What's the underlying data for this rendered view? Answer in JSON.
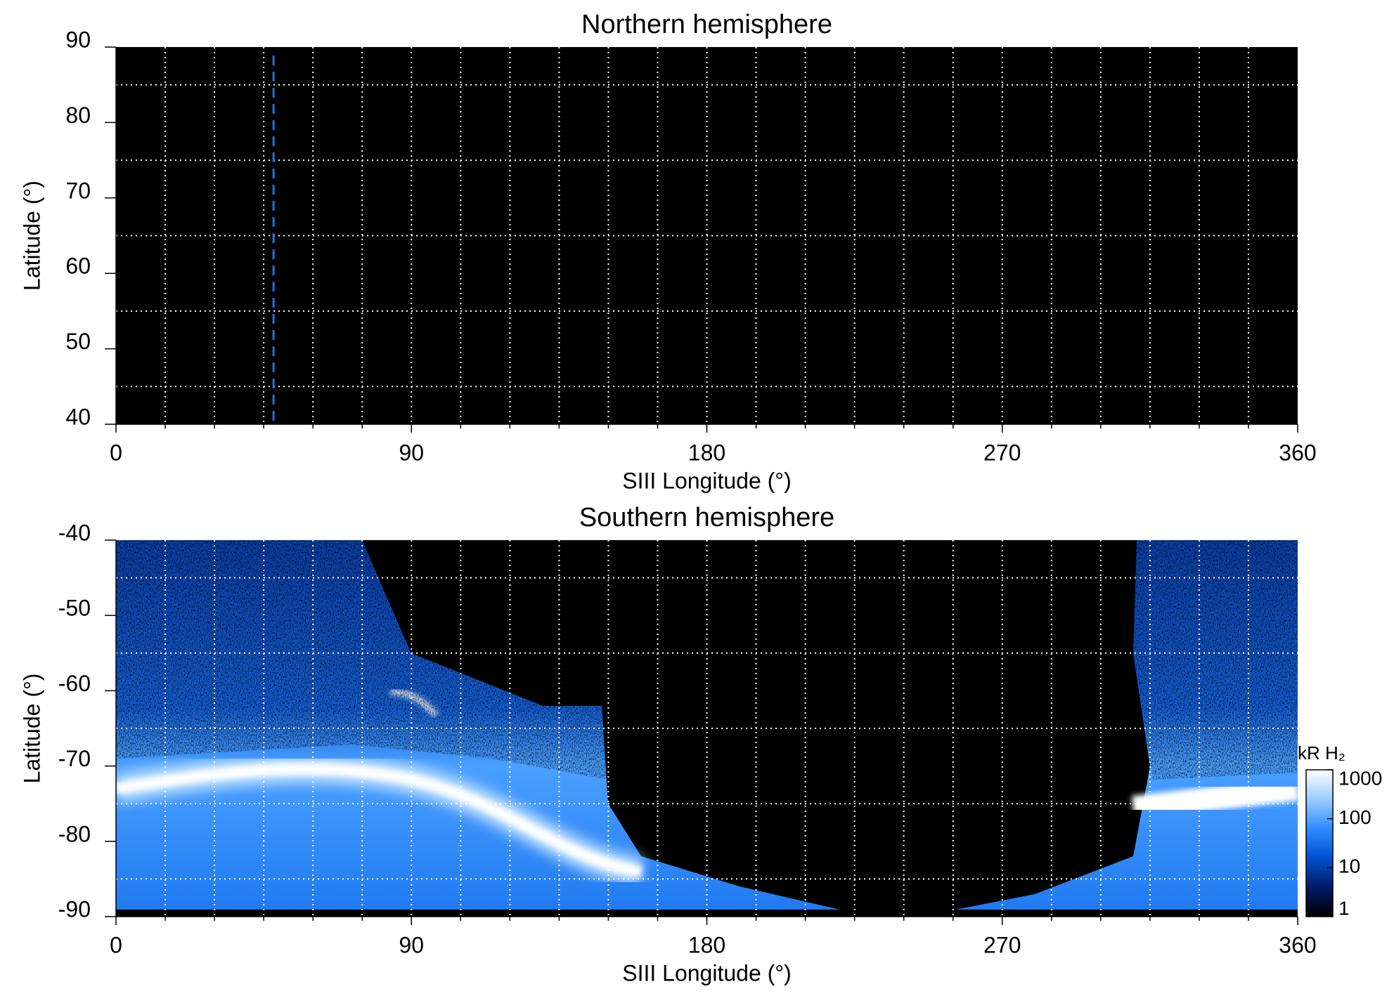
{
  "chart_data": [
    {
      "type": "heatmap",
      "title": "Northern hemisphere",
      "x_label": "SIII Longitude (°)",
      "y_label": "Latitude (°)",
      "xlim": [
        0,
        360
      ],
      "xticks": [
        0,
        90,
        180,
        270,
        360
      ],
      "ylim": [
        40,
        90
      ],
      "yticks": [
        40,
        50,
        60,
        70,
        80,
        90
      ],
      "xgrid": [
        15,
        30,
        45,
        60,
        75,
        90,
        105,
        120,
        135,
        150,
        165,
        180,
        195,
        210,
        225,
        240,
        255,
        270,
        285,
        300,
        315,
        330,
        345
      ],
      "ygrid": [
        45,
        55,
        65,
        75,
        85
      ],
      "vlines": [
        48
      ],
      "vline_color": "#2a6fd6",
      "grid_color": "#ffffff",
      "background": "#000000"
    },
    {
      "type": "heatmap",
      "title": "Southern hemisphere",
      "x_label": "SIII Longitude (°)",
      "y_label": "Latitude (°)",
      "xlim": [
        0,
        360
      ],
      "xticks": [
        0,
        90,
        180,
        270,
        360
      ],
      "ylim": [
        -90,
        -40
      ],
      "yticks": [
        -90,
        -80,
        -70,
        -60,
        -50,
        -40
      ],
      "xgrid": [
        15,
        30,
        45,
        60,
        75,
        90,
        105,
        120,
        135,
        150,
        165,
        180,
        195,
        210,
        225,
        240,
        255,
        270,
        285,
        300,
        315,
        330,
        345
      ],
      "ygrid": [
        -85,
        -75,
        -65,
        -55,
        -45
      ],
      "grid_color": "#ffffff",
      "background": "#000000",
      "colorbar": {
        "label": "kR H₂",
        "lim": [
          1,
          1000
        ],
        "ticks": [
          1,
          10,
          100,
          1000
        ],
        "log": true,
        "colors": [
          "#000000",
          "#001a66",
          "#0050d0",
          "#2f8cff",
          "#9cccff",
          "#ffffff"
        ]
      }
    }
  ]
}
